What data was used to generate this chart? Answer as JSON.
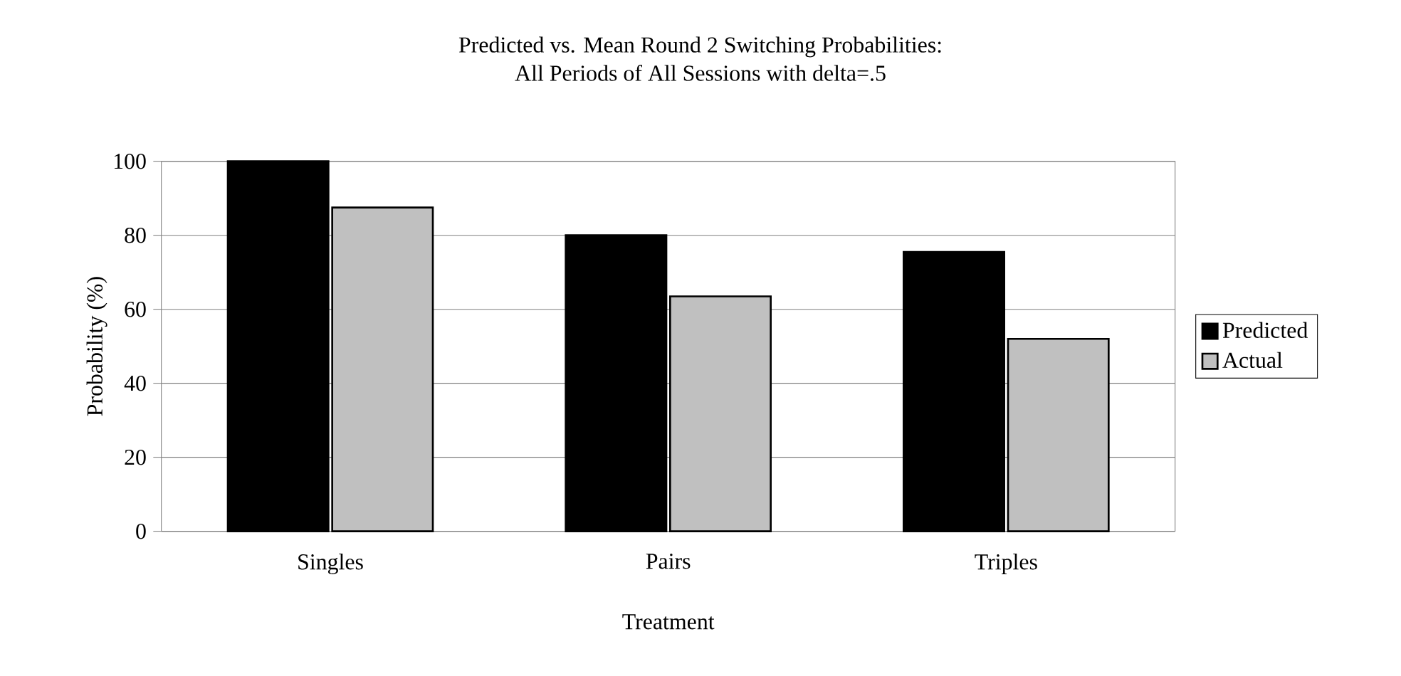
{
  "chart_data": {
    "type": "bar",
    "title": "Predicted vs. Mean Round 2 Switching Probabilities:\nAll Periods of All Sessions with delta=.5",
    "xlabel": "Treatment",
    "ylabel": "Probability (%)",
    "categories": [
      "Singles",
      "Pairs",
      "Triples"
    ],
    "series": [
      {
        "name": "Predicted",
        "color": "#000000",
        "values": [
          100,
          80,
          75.5
        ]
      },
      {
        "name": "Actual",
        "color": "#c0c0c0",
        "values": [
          87.5,
          63.5,
          52
        ]
      }
    ],
    "ylim": [
      0,
      100
    ],
    "yticks": [
      0,
      20,
      40,
      60,
      80,
      100
    ],
    "grid": "y",
    "legend": "right"
  }
}
